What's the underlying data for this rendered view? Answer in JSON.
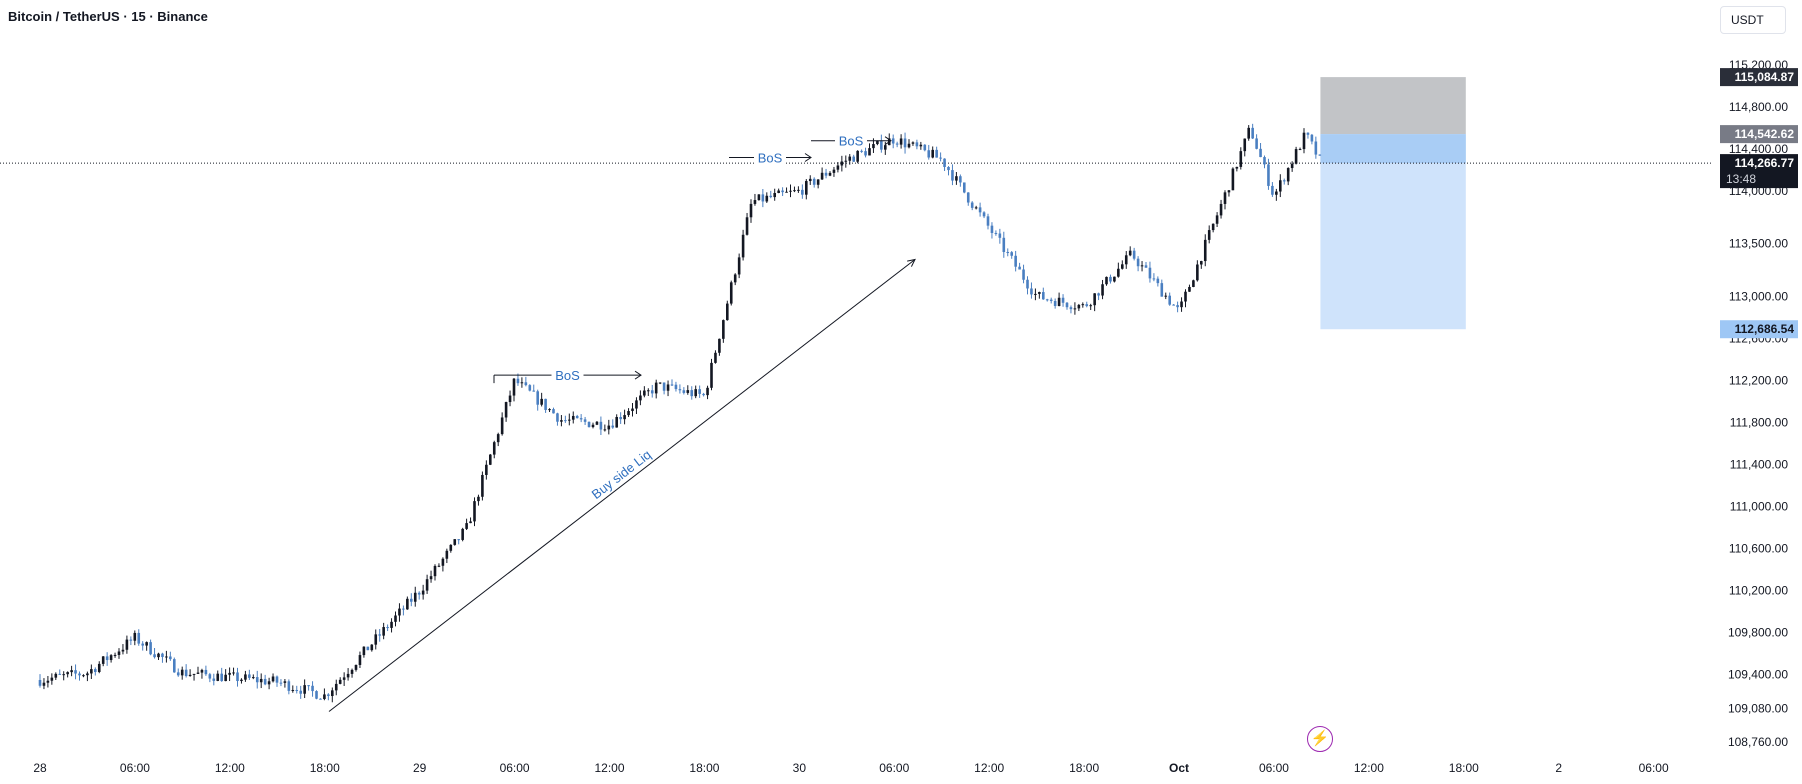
{
  "header": {
    "title": "Bitcoin / TetherUS · 15 · Binance",
    "currency": "USDT"
  },
  "colors": {
    "up": "#131722",
    "down": "#4a7fc1",
    "annotation_text": "#2f6fbf",
    "target_zone": "#bfc1c4",
    "profit_zone": "#cfe3fb",
    "profit_zone_upper": "#a9cdf5",
    "price_line": "#131722",
    "axis_text": "#131722",
    "stop_label": "#2a2e39",
    "entry_label": "#787b86",
    "current_label": "#131722",
    "target_label": "#9ec7f5",
    "alert_icon": "#9c27b0"
  },
  "icons": {
    "alert": "lightning-bolt-icon"
  },
  "chart_data": {
    "type": "candlestick",
    "symbol": "Bitcoin / TetherUS",
    "interval": "15",
    "exchange": "Binance",
    "y_axis": {
      "ticks": [
        108760,
        109080,
        109400,
        109800,
        110200,
        110600,
        111000,
        111400,
        111800,
        112200,
        112600,
        113000,
        113500,
        114000,
        114400,
        114800,
        115200
      ],
      "tick_labels": [
        "108,760.00",
        "109,080.00",
        "109,400.00",
        "109,800.00",
        "110,200.00",
        "110,600.00",
        "111,000.00",
        "111,400.00",
        "111,800.00",
        "112,200.00",
        "112,600.00",
        "113,000.00",
        "113,500.00",
        "114,000.00",
        "114,400.00",
        "114,800.00",
        "115,200.00"
      ],
      "range": [
        108680,
        115330
      ]
    },
    "x_axis": {
      "tick_labels": [
        "28",
        "06:00",
        "12:00",
        "18:00",
        "29",
        "06:00",
        "12:00",
        "18:00",
        "30",
        "06:00",
        "12:00",
        "18:00",
        "Oct",
        "06:00",
        "12:00",
        "18:00",
        "2",
        "06:00"
      ]
    },
    "price_path": [
      [
        "28 00:00",
        109350
      ],
      [
        "28 03:00",
        109420
      ],
      [
        "28 06:00",
        109750
      ],
      [
        "28 09:00",
        109420
      ],
      [
        "28 15:00",
        109330
      ],
      [
        "28 18:00",
        109200
      ],
      [
        "29 00:00",
        110200
      ],
      [
        "29 03:00",
        110800
      ],
      [
        "29 06:00",
        112200
      ],
      [
        "29 09:00",
        111820
      ],
      [
        "29 12:00",
        111780
      ],
      [
        "29 15:00",
        112150
      ],
      [
        "29 18:00",
        112050
      ],
      [
        "29 21:00",
        113900
      ],
      [
        "30 00:00",
        114000
      ],
      [
        "30 03:00",
        114300
      ],
      [
        "30 06:00",
        114500
      ],
      [
        "30 09:00",
        114300
      ],
      [
        "30 15:00",
        113000
      ],
      [
        "30 18:00",
        112900
      ],
      [
        "30 21:00",
        113400
      ],
      [
        "1 00:00",
        112850
      ],
      [
        "1 03:00",
        114000
      ],
      [
        "1 04:30",
        114600
      ],
      [
        "1 06:00",
        113950
      ],
      [
        "1 08:00",
        114540
      ],
      [
        "1 09:00",
        114266.77
      ]
    ],
    "current_price": "114,266.77",
    "countdown": "13:48",
    "position": {
      "type": "short",
      "stop_price": 115084.87,
      "stop_label": "115,084.87",
      "entry_price": 114542.62,
      "entry_label": "114,542.62",
      "target_price": 112686.54,
      "target_label": "112,686.54"
    },
    "annotations": [
      {
        "text": "BoS",
        "price": 112250
      },
      {
        "text": "BoS",
        "price": 114320
      },
      {
        "text": "BoS",
        "price": 114480
      },
      {
        "text": "Buy side Liq",
        "from_price": 109050,
        "to_price": 113350
      }
    ]
  }
}
